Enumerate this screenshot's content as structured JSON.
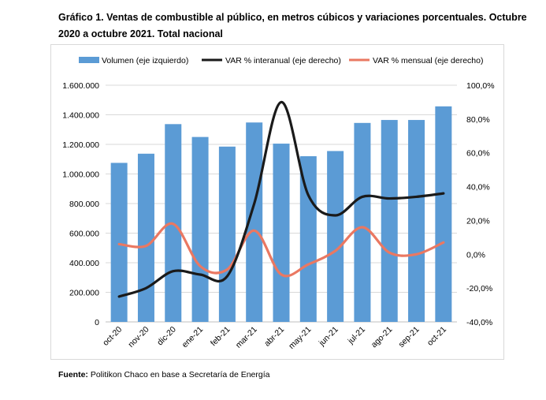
{
  "title": "Gráfico 1. Ventas de combustible al público, en metros cúbicos y variaciones porcentuales. Octubre 2020 a octubre 2021. Total nacional",
  "source_label": "Fuente:",
  "source_text": "Politikon Chaco en base a Secretaría de Energía",
  "colors": {
    "bar": "#5b9bd5",
    "interanual": "#1a1a1a",
    "mensual": "#ea7862",
    "grid": "#d9d9d9"
  },
  "chart_data": {
    "type": "bar",
    "categories": [
      "oct-20",
      "nov-20",
      "dic-20",
      "ene-21",
      "feb-21",
      "mar-21",
      "abr-21",
      "may-21",
      "jun-21",
      "jul-21",
      "ago-21",
      "sep-21",
      "oct-21"
    ],
    "series": [
      {
        "name": "Volumen (eje izquierdo)",
        "type": "bar",
        "axis": "left",
        "values": [
          1075000,
          1137000,
          1337000,
          1250000,
          1185000,
          1348000,
          1205000,
          1120000,
          1155000,
          1345000,
          1365000,
          1365000,
          1457000
        ]
      },
      {
        "name": "VAR % interanual (eje derecho)",
        "type": "line",
        "axis": "right",
        "values": [
          -25,
          -20,
          -10,
          -12,
          -13,
          30,
          90,
          35,
          23,
          34,
          33,
          34,
          36
        ]
      },
      {
        "name": "VAR % mensual (eje derecho)",
        "type": "line",
        "axis": "right",
        "values": [
          6,
          5,
          18,
          -7,
          -9,
          14,
          -12,
          -6,
          2,
          16,
          1,
          0,
          7
        ]
      }
    ],
    "y_left": {
      "min": 0,
      "max": 1600000,
      "step": 200000,
      "ticks": [
        "0",
        "200.000",
        "400.000",
        "600.000",
        "800.000",
        "1.000.000",
        "1.200.000",
        "1.400.000",
        "1.600.000"
      ]
    },
    "y_right": {
      "min": -40,
      "max": 100,
      "step": 20,
      "ticks": [
        "-40,0%",
        "-20,0%",
        "0,0%",
        "20,0%",
        "40,0%",
        "60,0%",
        "80,0%",
        "100,0%"
      ]
    },
    "legend_position": "top",
    "grid": true
  }
}
